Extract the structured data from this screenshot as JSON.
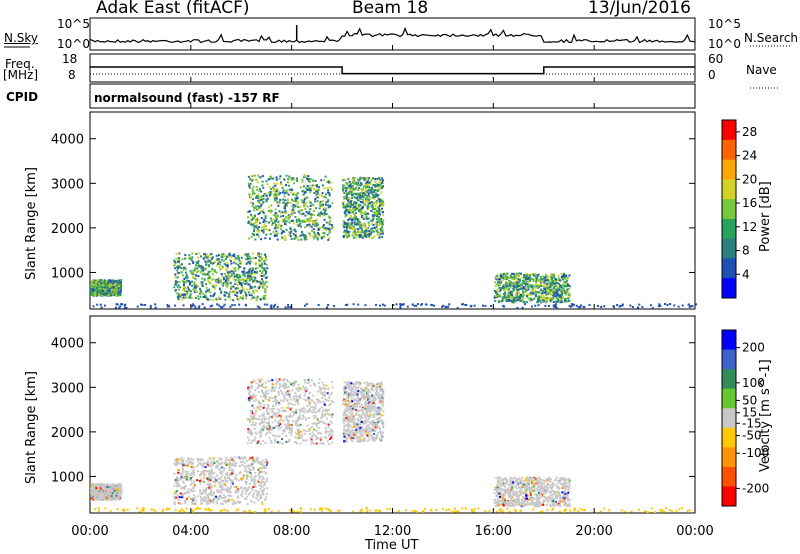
{
  "header": {
    "station": "Adak East (fitACF)",
    "beam": "Beam 18",
    "date": "13/Jun/2016"
  },
  "strips": {
    "nsky_label": "N.Sky",
    "nsearch_label": "N.Search",
    "noise_ticks_left": [
      "10^5",
      "10^0"
    ],
    "noise_ticks_right": [
      "10^5",
      "10^0"
    ],
    "freq_label_1": "Freq.",
    "freq_label_2": "[MHz]",
    "freq_ticks": [
      "18",
      "8"
    ],
    "nave_label": "Nave",
    "nave_ticks": [
      "60",
      "0"
    ],
    "cpid_label": "CPID",
    "cpid_text": "normalsound (fast) -157 RF"
  },
  "chart_data": [
    {
      "type": "heatmap",
      "panel": "power",
      "ylabel": "Slant Range [km]",
      "xlabel": "",
      "yticks": [
        "1000",
        "2000",
        "3000",
        "4000"
      ],
      "ylim": [
        180,
        4600
      ],
      "colorbar": {
        "label": "Power [dB]",
        "ticks": [
          "4",
          "8",
          "12",
          "16",
          "20",
          "24",
          "28"
        ],
        "range": [
          0,
          30
        ],
        "colors": [
          "#0000ff",
          "#2050b4",
          "#2e7f7f",
          "#28a35c",
          "#78c83c",
          "#d2d228",
          "#ffa500",
          "#ff6400",
          "#ff0000"
        ]
      },
      "echo_regions": [
        {
          "t_start": 0.0,
          "t_end": 1.2,
          "r_min": 500,
          "r_max": 850,
          "level": "6-20 dB"
        },
        {
          "t_start": 3.3,
          "t_end": 7.0,
          "r_min": 400,
          "r_max": 1450,
          "level": "4-24 dB"
        },
        {
          "t_start": 6.2,
          "t_end": 9.6,
          "r_min": 1750,
          "r_max": 3200,
          "level": "4-16 dB"
        },
        {
          "t_start": 10.0,
          "t_end": 11.6,
          "r_min": 1800,
          "r_max": 3150,
          "level": "4-16 dB"
        },
        {
          "t_start": 16.0,
          "t_end": 19.0,
          "r_min": 350,
          "r_max": 1000,
          "level": "4-8 dB"
        }
      ]
    },
    {
      "type": "heatmap",
      "panel": "velocity",
      "ylabel": "Slant Range [km]",
      "xlabel": "Time UT",
      "yticks": [
        "1000",
        "2000",
        "3000",
        "4000"
      ],
      "ylim": [
        180,
        4600
      ],
      "colorbar": {
        "label": "Velocity [m s^-1]",
        "ticks": [
          "200",
          "100",
          "50",
          "15",
          "-15",
          "-50",
          "-100",
          "-200"
        ],
        "range": [
          -250,
          250
        ],
        "colors": [
          "#0000ff",
          "#3c64c8",
          "#328c5a",
          "#64c832",
          "#c8c8c8",
          "#ffc800",
          "#ff9600",
          "#ff5000",
          "#ff0000"
        ]
      },
      "echo_regions": [
        {
          "t_start": 0.0,
          "t_end": 1.2,
          "r_min": 500,
          "r_max": 850,
          "level": "-15 to 15"
        },
        {
          "t_start": 3.3,
          "t_end": 7.0,
          "r_min": 400,
          "r_max": 1450,
          "level": "-15 to 15"
        },
        {
          "t_start": 6.2,
          "t_end": 9.6,
          "r_min": 1750,
          "r_max": 3200,
          "level": "-15 to 15"
        },
        {
          "t_start": 10.0,
          "t_end": 11.6,
          "r_min": 1800,
          "r_max": 3150,
          "level": "-50 to 15"
        },
        {
          "t_start": 16.0,
          "t_end": 19.0,
          "r_min": 350,
          "r_max": 1000,
          "level": "-15 to 15"
        }
      ]
    },
    {
      "type": "line",
      "panel": "frequency",
      "xlabel": "Time UT",
      "x_ticks": [
        "00:00",
        "04:00",
        "08:00",
        "12:00",
        "16:00",
        "20:00",
        "00:00"
      ],
      "xlim": [
        0,
        24
      ],
      "series": [
        {
          "x": [
            0,
            10,
            10,
            18,
            18,
            24
          ],
          "values": [
            13.5,
            13.5,
            10.2,
            10.2,
            13.5,
            13.5
          ]
        }
      ]
    }
  ]
}
